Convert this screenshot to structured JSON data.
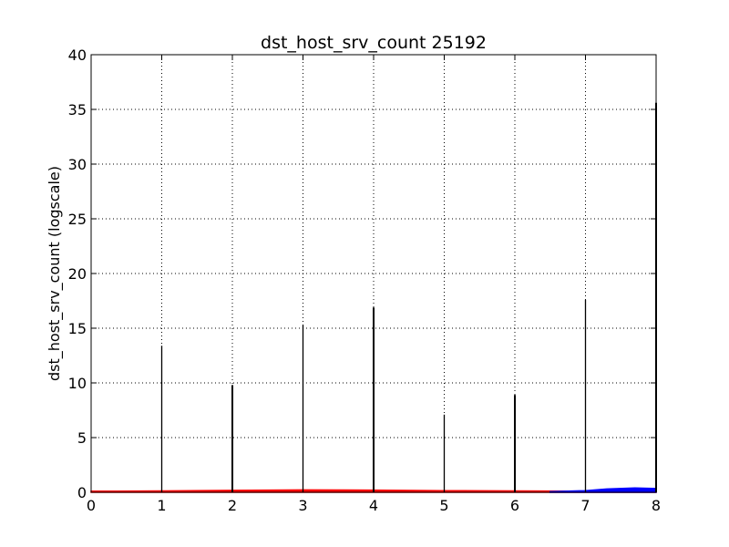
{
  "chart_data": {
    "type": "line",
    "title": "dst_host_srv_count 25192",
    "xlabel": "",
    "ylabel": "dst_host_srv_count (logscale)",
    "xlim": [
      0,
      8
    ],
    "ylim": [
      0,
      40
    ],
    "x_ticks": [
      0,
      1,
      2,
      3,
      4,
      5,
      6,
      7,
      8
    ],
    "y_ticks": [
      0,
      5,
      10,
      15,
      20,
      25,
      30,
      35,
      40
    ],
    "grid": true,
    "spikes": [
      {
        "x": 1,
        "y": 13.4
      },
      {
        "x": 2,
        "y": 9.8
      },
      {
        "x": 3,
        "y": 15.3
      },
      {
        "x": 4,
        "y": 16.9
      },
      {
        "x": 5,
        "y": 7.1
      },
      {
        "x": 6,
        "y": 8.9
      },
      {
        "x": 7,
        "y": 17.6
      },
      {
        "x": 8,
        "y": 35.6
      }
    ],
    "series": [
      {
        "color": "#ff0000",
        "x": [
          0,
          1,
          2,
          3,
          4,
          5,
          6,
          7,
          8
        ],
        "y": [
          0.1,
          0.12,
          0.18,
          0.22,
          0.2,
          0.15,
          0.12,
          0.1,
          0.12
        ]
      },
      {
        "color": "#0000ff",
        "x": [
          6.5,
          7,
          7.3,
          7.7,
          8
        ],
        "y": [
          0.05,
          0.15,
          0.3,
          0.4,
          0.35
        ]
      }
    ]
  }
}
